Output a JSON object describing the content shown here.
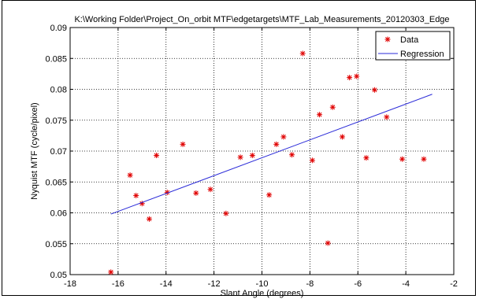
{
  "chart_data": {
    "type": "scatter",
    "title": "K:\\Working Folder\\Project_On_orbit MTF\\edgetargets\\MTF_Lab_Measurements_20120303_Edge",
    "xlabel": "Slant Angle (degrees)",
    "ylabel": "Nyquist MTF (cycle/pixel)",
    "xlim": [
      -18,
      -2
    ],
    "ylim": [
      0.05,
      0.09
    ],
    "xticks": [
      -18,
      -16,
      -14,
      -12,
      -10,
      -8,
      -6,
      -4,
      -2
    ],
    "yticks": [
      0.05,
      0.055,
      0.06,
      0.065,
      0.07,
      0.075,
      0.08,
      0.085,
      0.09
    ],
    "xtick_labels": [
      "-18",
      "-16",
      "-14",
      "-12",
      "-10",
      "-8",
      "-6",
      "-4",
      "-2"
    ],
    "ytick_labels": [
      "0.05",
      "0.055",
      "0.06",
      "0.065",
      "0.07",
      "0.075",
      "0.08",
      "0.085",
      "0.09"
    ],
    "grid": true,
    "legend_position": "top-right",
    "series": [
      {
        "name": "Data",
        "kind": "scatter",
        "marker": "star",
        "color": "#e00000",
        "x": [
          -16.3,
          -15.5,
          -15.25,
          -15.0,
          -14.7,
          -14.4,
          -13.95,
          -13.3,
          -12.75,
          -12.15,
          -11.5,
          -10.9,
          -10.4,
          -9.7,
          -9.4,
          -9.1,
          -8.75,
          -8.3,
          -7.9,
          -7.6,
          -7.25,
          -7.05,
          -6.65,
          -6.35,
          -6.05,
          -5.65,
          -5.3,
          -4.8,
          -4.15,
          -3.25
        ],
        "y": [
          0.0504,
          0.0661,
          0.0628,
          0.0615,
          0.059,
          0.0693,
          0.0633,
          0.0711,
          0.0632,
          0.0638,
          0.0599,
          0.069,
          0.0693,
          0.0629,
          0.0711,
          0.0723,
          0.0694,
          0.0858,
          0.0685,
          0.0759,
          0.0551,
          0.0771,
          0.0723,
          0.0819,
          0.0821,
          0.0689,
          0.0799,
          0.0755,
          0.0687,
          0.0687
        ]
      },
      {
        "name": "Regression",
        "kind": "line",
        "color": "#2a2ad8",
        "x": [
          -16.3,
          -2.9
        ],
        "y": [
          0.0598,
          0.0792
        ]
      }
    ]
  }
}
